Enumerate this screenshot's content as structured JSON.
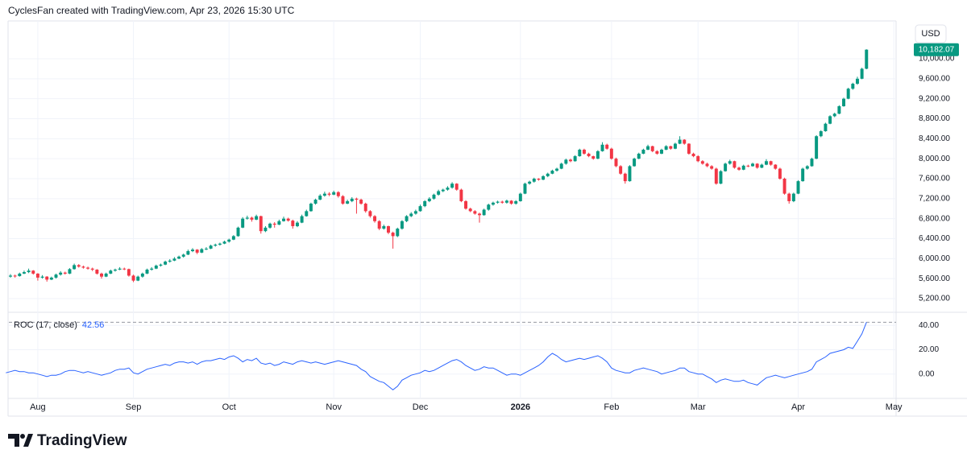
{
  "header": "CyclesFan created with TradingView.com, Apr 23, 2026 15:30 UTC",
  "currency": "USD",
  "brand": "TradingView",
  "chart_data": {
    "type": "candlestick",
    "up_color": "#089981",
    "down_color": "#f23645",
    "grid": true,
    "xlim": [
      -1.3,
      195.5
    ],
    "xticks": [
      {
        "value": 7,
        "label": "Aug"
      },
      {
        "value": 28,
        "label": "Sep"
      },
      {
        "value": 49,
        "label": "Oct"
      },
      {
        "value": 72,
        "label": "Nov"
      },
      {
        "value": 91,
        "label": "Dec"
      },
      {
        "value": 113,
        "label": "2026"
      },
      {
        "value": 133,
        "label": "Feb"
      },
      {
        "value": 152,
        "label": "Mar"
      },
      {
        "value": 174,
        "label": "Apr"
      },
      {
        "value": 195,
        "label": "May"
      }
    ],
    "ylim": [
      4926,
      10757
    ],
    "yticks": [
      {
        "value": 5200,
        "label": "5,200.00"
      },
      {
        "value": 5600,
        "label": "5,600.00"
      },
      {
        "value": 6000,
        "label": "6,000.00"
      },
      {
        "value": 6400,
        "label": "6,400.00"
      },
      {
        "value": 6800,
        "label": "6,800.00"
      },
      {
        "value": 7200,
        "label": "7,200.00"
      },
      {
        "value": 7600,
        "label": "7,600.00"
      },
      {
        "value": 8000,
        "label": "8,000.00"
      },
      {
        "value": 8400,
        "label": "8,400.00"
      },
      {
        "value": 8800,
        "label": "8,800.00"
      },
      {
        "value": 9200,
        "label": "9,200.00"
      },
      {
        "value": 9600,
        "label": "9,600.00"
      },
      {
        "value": 10000,
        "label": "10,000.00"
      }
    ],
    "last_label": "10,182.07",
    "ohlc": [
      [
        5600,
        5670,
        5580,
        5640
      ],
      [
        5640,
        5690,
        5620,
        5660
      ],
      [
        5660,
        5680,
        5620,
        5650
      ],
      [
        5650,
        5720,
        5640,
        5700
      ],
      [
        5700,
        5760,
        5690,
        5730
      ],
      [
        5730,
        5800,
        5710,
        5760
      ],
      [
        5760,
        5770,
        5680,
        5700
      ],
      [
        5700,
        5710,
        5560,
        5620
      ],
      [
        5620,
        5670,
        5600,
        5640
      ],
      [
        5640,
        5650,
        5540,
        5580
      ],
      [
        5580,
        5640,
        5570,
        5620
      ],
      [
        5620,
        5700,
        5600,
        5680
      ],
      [
        5680,
        5750,
        5660,
        5720
      ],
      [
        5720,
        5740,
        5680,
        5700
      ],
      [
        5700,
        5810,
        5690,
        5790
      ],
      [
        5790,
        5900,
        5780,
        5870
      ],
      [
        5870,
        5890,
        5820,
        5840
      ],
      [
        5840,
        5860,
        5800,
        5820
      ],
      [
        5820,
        5840,
        5780,
        5800
      ],
      [
        5800,
        5820,
        5750,
        5780
      ],
      [
        5780,
        5790,
        5680,
        5700
      ],
      [
        5700,
        5720,
        5600,
        5640
      ],
      [
        5640,
        5720,
        5630,
        5700
      ],
      [
        5700,
        5780,
        5690,
        5760
      ],
      [
        5760,
        5800,
        5740,
        5780
      ],
      [
        5780,
        5830,
        5770,
        5800
      ],
      [
        5800,
        5820,
        5770,
        5790
      ],
      [
        5790,
        5800,
        5640,
        5660
      ],
      [
        5660,
        5680,
        5530,
        5560
      ],
      [
        5560,
        5660,
        5550,
        5640
      ],
      [
        5640,
        5720,
        5620,
        5700
      ],
      [
        5700,
        5800,
        5690,
        5780
      ],
      [
        5780,
        5830,
        5760,
        5800
      ],
      [
        5800,
        5880,
        5790,
        5860
      ],
      [
        5860,
        5900,
        5840,
        5880
      ],
      [
        5880,
        5960,
        5870,
        5940
      ],
      [
        5940,
        5990,
        5920,
        5960
      ],
      [
        5960,
        6030,
        5950,
        6000
      ],
      [
        6000,
        6060,
        5990,
        6040
      ],
      [
        6040,
        6100,
        6020,
        6080
      ],
      [
        6080,
        6180,
        6070,
        6150
      ],
      [
        6150,
        6210,
        6130,
        6180
      ],
      [
        6180,
        6190,
        6090,
        6120
      ],
      [
        6120,
        6210,
        6110,
        6190
      ],
      [
        6190,
        6230,
        6170,
        6200
      ],
      [
        6200,
        6280,
        6190,
        6260
      ],
      [
        6260,
        6300,
        6240,
        6280
      ],
      [
        6280,
        6320,
        6260,
        6300
      ],
      [
        6300,
        6360,
        6290,
        6340
      ],
      [
        6340,
        6400,
        6320,
        6380
      ],
      [
        6380,
        6470,
        6370,
        6450
      ],
      [
        6450,
        6640,
        6440,
        6620
      ],
      [
        6620,
        6830,
        6610,
        6800
      ],
      [
        6800,
        6860,
        6780,
        6820
      ],
      [
        6820,
        6840,
        6740,
        6780
      ],
      [
        6780,
        6880,
        6770,
        6850
      ],
      [
        6850,
        6860,
        6500,
        6550
      ],
      [
        6550,
        6650,
        6530,
        6620
      ],
      [
        6620,
        6720,
        6600,
        6700
      ],
      [
        6700,
        6730,
        6620,
        6680
      ],
      [
        6680,
        6780,
        6670,
        6750
      ],
      [
        6750,
        6840,
        6740,
        6800
      ],
      [
        6800,
        6820,
        6740,
        6760
      ],
      [
        6760,
        6780,
        6600,
        6650
      ],
      [
        6650,
        6750,
        6630,
        6720
      ],
      [
        6720,
        6880,
        6710,
        6850
      ],
      [
        6850,
        6980,
        6840,
        6950
      ],
      [
        6950,
        7120,
        6940,
        7100
      ],
      [
        7100,
        7200,
        7080,
        7180
      ],
      [
        7180,
        7290,
        7170,
        7260
      ],
      [
        7260,
        7340,
        7240,
        7300
      ],
      [
        7300,
        7330,
        7250,
        7280
      ],
      [
        7280,
        7360,
        7270,
        7330
      ],
      [
        7330,
        7350,
        7220,
        7250
      ],
      [
        7250,
        7270,
        7080,
        7100
      ],
      [
        7100,
        7180,
        7090,
        7150
      ],
      [
        7150,
        7230,
        7130,
        7200
      ],
      [
        7200,
        7220,
        6900,
        7180
      ],
      [
        7180,
        7200,
        7080,
        7100
      ],
      [
        7100,
        7120,
        6920,
        6950
      ],
      [
        6950,
        6970,
        6820,
        6850
      ],
      [
        6850,
        6870,
        6720,
        6750
      ],
      [
        6750,
        6770,
        6570,
        6600
      ],
      [
        6600,
        6680,
        6580,
        6650
      ],
      [
        6650,
        6660,
        6490,
        6520
      ],
      [
        6520,
        6540,
        6200,
        6450
      ],
      [
        6450,
        6620,
        6430,
        6600
      ],
      [
        6600,
        6770,
        6580,
        6750
      ],
      [
        6750,
        6870,
        6730,
        6850
      ],
      [
        6850,
        6930,
        6830,
        6900
      ],
      [
        6900,
        6980,
        6880,
        6950
      ],
      [
        6950,
        7080,
        6940,
        7050
      ],
      [
        7050,
        7170,
        7030,
        7150
      ],
      [
        7150,
        7230,
        7130,
        7200
      ],
      [
        7200,
        7300,
        7180,
        7280
      ],
      [
        7280,
        7380,
        7260,
        7350
      ],
      [
        7350,
        7400,
        7330,
        7380
      ],
      [
        7380,
        7450,
        7360,
        7420
      ],
      [
        7420,
        7530,
        7400,
        7500
      ],
      [
        7500,
        7510,
        7360,
        7380
      ],
      [
        7380,
        7400,
        7130,
        7150
      ],
      [
        7150,
        7170,
        6980,
        7000
      ],
      [
        7000,
        7020,
        6930,
        6950
      ],
      [
        6950,
        6970,
        6880,
        6900
      ],
      [
        6900,
        6920,
        6720,
        6870
      ],
      [
        6870,
        7000,
        6860,
        6980
      ],
      [
        6980,
        7100,
        6960,
        7080
      ],
      [
        7080,
        7140,
        7060,
        7120
      ],
      [
        7120,
        7160,
        7100,
        7140
      ],
      [
        7140,
        7160,
        7100,
        7120
      ],
      [
        7120,
        7180,
        7100,
        7160
      ],
      [
        7160,
        7170,
        7080,
        7100
      ],
      [
        7100,
        7170,
        7080,
        7150
      ],
      [
        7150,
        7320,
        7140,
        7300
      ],
      [
        7300,
        7520,
        7290,
        7500
      ],
      [
        7500,
        7560,
        7480,
        7540
      ],
      [
        7540,
        7620,
        7520,
        7600
      ],
      [
        7600,
        7610,
        7560,
        7580
      ],
      [
        7580,
        7670,
        7570,
        7650
      ],
      [
        7650,
        7720,
        7630,
        7700
      ],
      [
        7700,
        7780,
        7690,
        7760
      ],
      [
        7760,
        7820,
        7740,
        7800
      ],
      [
        7800,
        7920,
        7790,
        7900
      ],
      [
        7900,
        8000,
        7880,
        7980
      ],
      [
        7980,
        8000,
        7930,
        7950
      ],
      [
        7950,
        8070,
        7940,
        8050
      ],
      [
        8050,
        8200,
        8040,
        8180
      ],
      [
        8180,
        8200,
        8080,
        8100
      ],
      [
        8100,
        8120,
        8030,
        8050
      ],
      [
        8050,
        8060,
        7980,
        8000
      ],
      [
        8000,
        8170,
        7990,
        8150
      ],
      [
        8150,
        8330,
        8140,
        8280
      ],
      [
        8280,
        8300,
        8180,
        8200
      ],
      [
        8200,
        8220,
        7980,
        8000
      ],
      [
        8000,
        8020,
        7830,
        7850
      ],
      [
        7850,
        7870,
        7680,
        7700
      ],
      [
        7700,
        7720,
        7500,
        7550
      ],
      [
        7550,
        7870,
        7540,
        7850
      ],
      [
        7850,
        8020,
        7840,
        8000
      ],
      [
        8000,
        8120,
        7990,
        8100
      ],
      [
        8100,
        8200,
        8090,
        8180
      ],
      [
        8180,
        8280,
        8170,
        8250
      ],
      [
        8250,
        8260,
        8130,
        8150
      ],
      [
        8150,
        8170,
        8080,
        8100
      ],
      [
        8100,
        8200,
        8090,
        8180
      ],
      [
        8180,
        8270,
        8170,
        8250
      ],
      [
        8250,
        8260,
        8180,
        8200
      ],
      [
        8200,
        8320,
        8190,
        8300
      ],
      [
        8300,
        8450,
        8290,
        8380
      ],
      [
        8380,
        8390,
        8280,
        8300
      ],
      [
        8300,
        8310,
        8080,
        8100
      ],
      [
        8100,
        8120,
        8030,
        8050
      ],
      [
        8050,
        8070,
        7930,
        7950
      ],
      [
        7950,
        7970,
        7880,
        7900
      ],
      [
        7900,
        7920,
        7830,
        7850
      ],
      [
        7850,
        7870,
        7780,
        7800
      ],
      [
        7800,
        7820,
        7480,
        7500
      ],
      [
        7500,
        7770,
        7490,
        7750
      ],
      [
        7750,
        7920,
        7740,
        7900
      ],
      [
        7900,
        7980,
        7880,
        7950
      ],
      [
        7950,
        7960,
        7800,
        7820
      ],
      [
        7820,
        7840,
        7760,
        7780
      ],
      [
        7780,
        7880,
        7770,
        7860
      ],
      [
        7860,
        7880,
        7830,
        7850
      ],
      [
        7850,
        7920,
        7840,
        7900
      ],
      [
        7900,
        7910,
        7800,
        7820
      ],
      [
        7820,
        7900,
        7810,
        7880
      ],
      [
        7880,
        7990,
        7870,
        7950
      ],
      [
        7950,
        7960,
        7860,
        7880
      ],
      [
        7880,
        7890,
        7780,
        7800
      ],
      [
        7800,
        7820,
        7580,
        7600
      ],
      [
        7600,
        7620,
        7280,
        7300
      ],
      [
        7300,
        7320,
        7100,
        7150
      ],
      [
        7150,
        7320,
        7130,
        7300
      ],
      [
        7300,
        7570,
        7290,
        7550
      ],
      [
        7550,
        7820,
        7540,
        7800
      ],
      [
        7800,
        7870,
        7780,
        7850
      ],
      [
        7850,
        8020,
        7840,
        8000
      ],
      [
        8000,
        8470,
        7990,
        8450
      ],
      [
        8450,
        8570,
        8430,
        8550
      ],
      [
        8550,
        8720,
        8540,
        8700
      ],
      [
        8700,
        8870,
        8690,
        8850
      ],
      [
        8850,
        8920,
        8830,
        8900
      ],
      [
        8900,
        9070,
        8890,
        9050
      ],
      [
        9050,
        9220,
        9040,
        9200
      ],
      [
        9200,
        9420,
        9190,
        9400
      ],
      [
        9400,
        9520,
        9380,
        9500
      ],
      [
        9500,
        9640,
        9480,
        9600
      ],
      [
        9600,
        9820,
        9590,
        9800
      ],
      [
        9800,
        10190,
        9790,
        10182.07
      ]
    ],
    "indicator": {
      "type": "line",
      "title": "ROC (17, close)",
      "color": "#2962ff",
      "ylim": [
        -20,
        50.7
      ],
      "yticks": [
        {
          "value": 0,
          "label": "0.00"
        },
        {
          "value": 20,
          "label": "20.00"
        },
        {
          "value": 40,
          "label": "40.00"
        }
      ],
      "values": [
        1,
        2,
        3,
        2,
        2,
        1,
        1,
        0,
        -1,
        -2,
        -1,
        -1,
        0,
        2,
        3,
        3,
        2,
        1,
        2,
        1,
        0,
        -1,
        0,
        1,
        3,
        4,
        4,
        5,
        1,
        0,
        2,
        4,
        5,
        6,
        7,
        8,
        7,
        9,
        10,
        10,
        9,
        10,
        8,
        10,
        11,
        11,
        12,
        13,
        12,
        14,
        15,
        13,
        10,
        12,
        11,
        13,
        9,
        8,
        9,
        7,
        8,
        10,
        9,
        8,
        10,
        11,
        10,
        9,
        10,
        9,
        8,
        9,
        10,
        11,
        10,
        9,
        8,
        7,
        4,
        2,
        -2,
        -4,
        -6,
        -7,
        -10,
        -13,
        -10,
        -5,
        -3,
        -1,
        0,
        1,
        3,
        2,
        3,
        5,
        7,
        9,
        11,
        12,
        10,
        7,
        5,
        3,
        4,
        6,
        5,
        5,
        3,
        1,
        -1,
        0,
        0,
        -1,
        1,
        3,
        5,
        7,
        10,
        14,
        17,
        15,
        12,
        10,
        11,
        12,
        13,
        12,
        13,
        14,
        15,
        13,
        10,
        5,
        3,
        2,
        1,
        1,
        3,
        4,
        5,
        4,
        3,
        2,
        0,
        1,
        2,
        3,
        5,
        5,
        2,
        1,
        0,
        0,
        -2,
        -4,
        -7,
        -5,
        -4,
        -5,
        -6,
        -6,
        -5,
        -7,
        -8,
        -9,
        -6,
        -3,
        -2,
        -1,
        -2,
        -3,
        -2,
        -1,
        0,
        1,
        2,
        4,
        10,
        12,
        14,
        17,
        18,
        19,
        20,
        22,
        21,
        27,
        33,
        42.56
      ]
    }
  }
}
